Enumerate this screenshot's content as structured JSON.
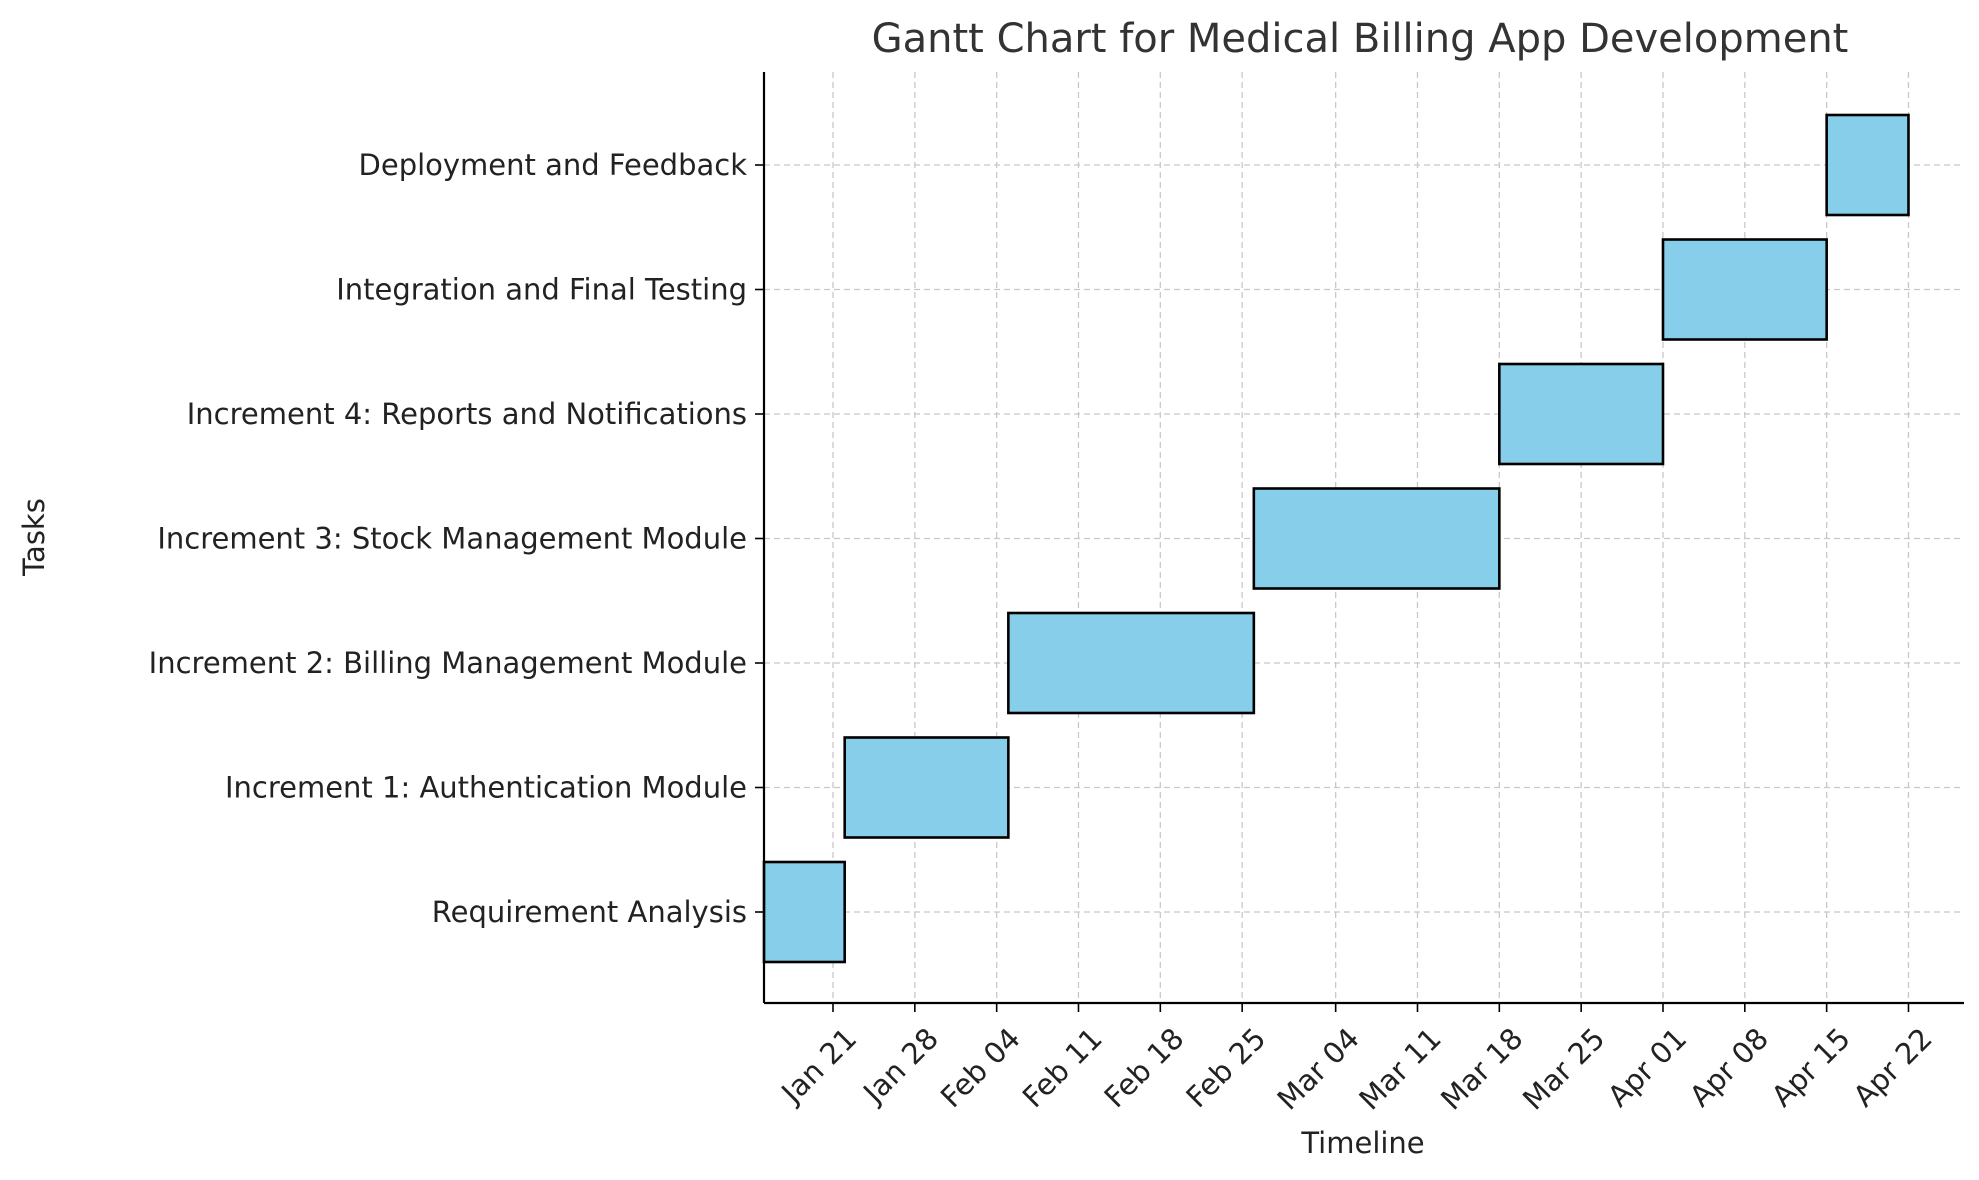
{
  "chart_data": {
    "type": "gantt",
    "title": "Gantt Chart for Medical Billing App Development",
    "xlabel": "Timeline",
    "ylabel": "Tasks",
    "bar_color": "#87CEEB",
    "edge_color": "#000000",
    "grid": true,
    "xlim": [
      "2024-01-13",
      "2024-04-27"
    ],
    "x_ticks": [
      {
        "date": "2024-01-21",
        "label": "Jan 21"
      },
      {
        "date": "2024-01-28",
        "label": "Jan 28"
      },
      {
        "date": "2024-02-04",
        "label": "Feb 04"
      },
      {
        "date": "2024-02-11",
        "label": "Feb 11"
      },
      {
        "date": "2024-02-18",
        "label": "Feb 18"
      },
      {
        "date": "2024-02-25",
        "label": "Feb 25"
      },
      {
        "date": "2024-03-04",
        "label": "Mar 04"
      },
      {
        "date": "2024-03-11",
        "label": "Mar 11"
      },
      {
        "date": "2024-03-18",
        "label": "Mar 18"
      },
      {
        "date": "2024-03-25",
        "label": "Mar 25"
      },
      {
        "date": "2024-04-01",
        "label": "Apr 01"
      },
      {
        "date": "2024-04-08",
        "label": "Apr 08"
      },
      {
        "date": "2024-04-15",
        "label": "Apr 15"
      },
      {
        "date": "2024-04-22",
        "label": "Apr 22"
      }
    ],
    "tasks": [
      {
        "name": "Requirement Analysis",
        "start": "2024-01-15",
        "end": "2024-01-22"
      },
      {
        "name": "Increment 1: Authentication Module",
        "start": "2024-01-22",
        "end": "2024-02-05"
      },
      {
        "name": "Increment 2: Billing Management Module",
        "start": "2024-02-05",
        "end": "2024-02-26"
      },
      {
        "name": "Increment 3: Stock Management Module",
        "start": "2024-02-26",
        "end": "2024-03-18"
      },
      {
        "name": "Increment 4: Reports and Notifications",
        "start": "2024-03-18",
        "end": "2024-04-01"
      },
      {
        "name": "Integration and Final Testing",
        "start": "2024-04-01",
        "end": "2024-04-15"
      },
      {
        "name": "Deployment and Feedback",
        "start": "2024-04-15",
        "end": "2024-04-22"
      }
    ]
  }
}
